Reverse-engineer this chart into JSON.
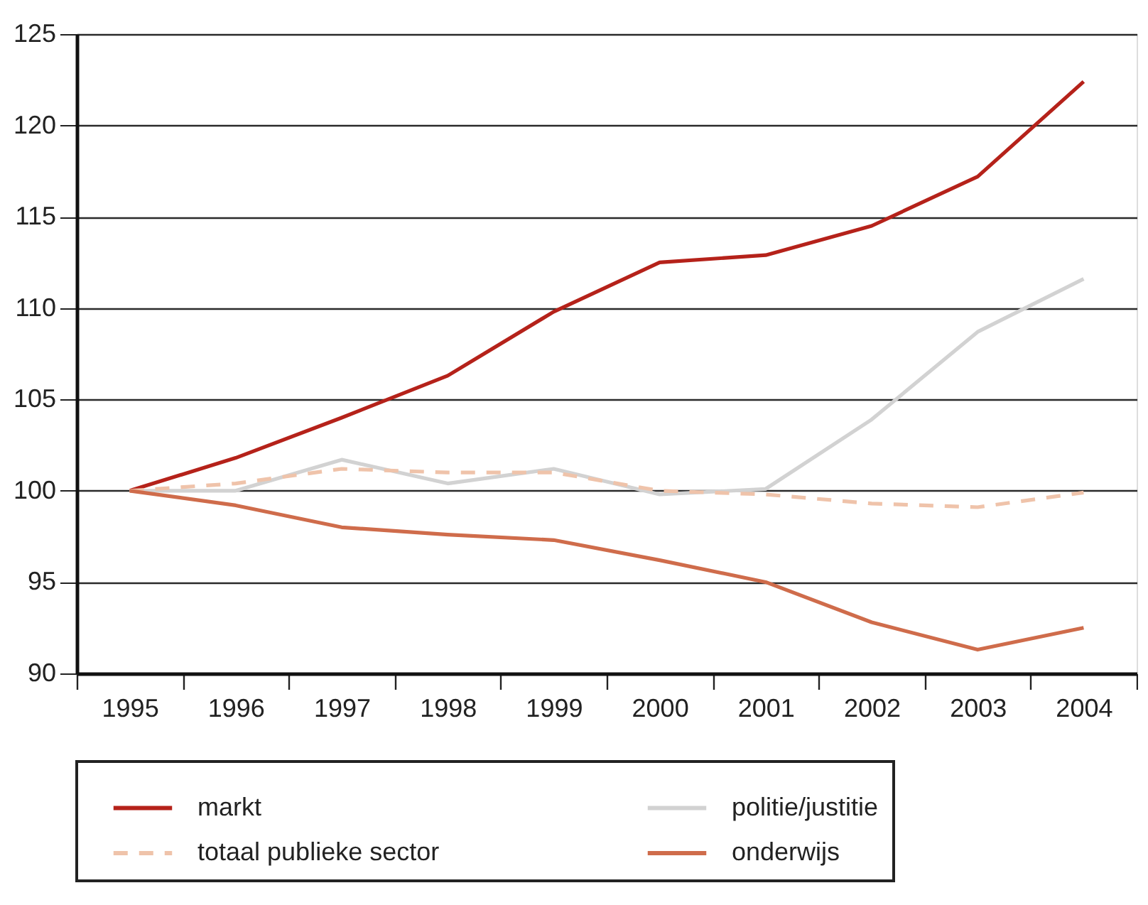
{
  "chart_data": {
    "type": "line",
    "categories": [
      "1995",
      "1996",
      "1997",
      "1998",
      "1999",
      "2000",
      "2001",
      "2002",
      "2003",
      "2004"
    ],
    "series": [
      {
        "name": "markt",
        "color": "#b5221a",
        "values": [
          100,
          101.8,
          104.0,
          106.3,
          109.8,
          112.5,
          112.9,
          114.5,
          117.2,
          122.4
        ]
      },
      {
        "name": "politie/justitie",
        "color": "#d2d2d2",
        "values": [
          100,
          100.0,
          101.7,
          100.4,
          101.2,
          99.8,
          100.1,
          103.9,
          108.7,
          111.6
        ]
      },
      {
        "name": "totaal publieke sector",
        "color": "#efc3aa",
        "line_style": "dashed",
        "values": [
          100,
          100.4,
          101.2,
          101.0,
          101.0,
          100.0,
          99.8,
          99.3,
          99.1,
          99.9
        ]
      },
      {
        "name": "onderwijs",
        "color": "#cf6c4b",
        "values": [
          100,
          99.2,
          98.0,
          97.6,
          97.3,
          96.2,
          95.0,
          92.8,
          91.3,
          92.5
        ]
      }
    ],
    "ylim": [
      90,
      125
    ],
    "yticks": [
      90,
      95,
      100,
      105,
      110,
      115,
      120,
      125
    ],
    "grid": "y",
    "legend": "bottom",
    "marker": "none",
    "line_style": "solid"
  }
}
